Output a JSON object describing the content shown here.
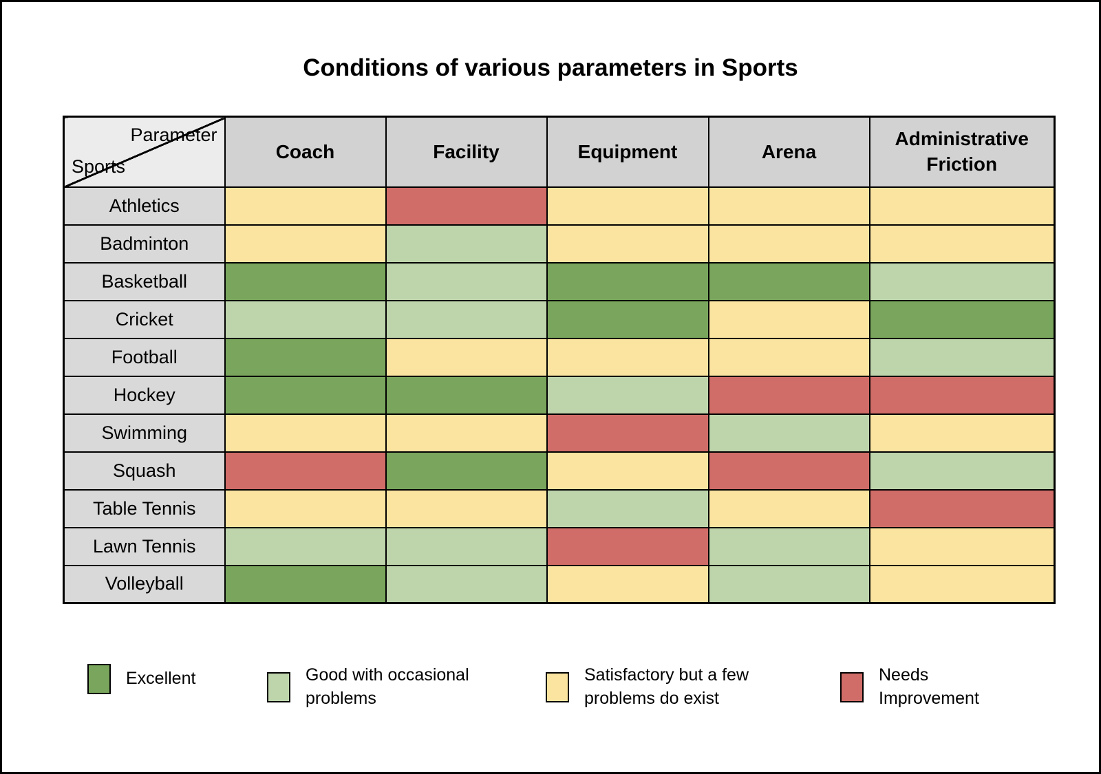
{
  "title": "Conditions of various parameters in Sports",
  "corner": {
    "top_right": "Parameter",
    "bottom_left": "Sports"
  },
  "chart_data": {
    "type": "heatmap",
    "title": "Conditions of various parameters in Sports",
    "columns": [
      "Coach",
      "Facility",
      "Equipment",
      "Arena",
      "Administrative Friction"
    ],
    "rows": [
      "Athletics",
      "Badminton",
      "Basketball",
      "Cricket",
      "Football",
      "Hockey",
      "Swimming",
      "Squash",
      "Table Tennis",
      "Lawn Tennis",
      "Volleyball"
    ],
    "values": [
      [
        "satisfactory",
        "needs_improvement",
        "satisfactory",
        "satisfactory",
        "satisfactory"
      ],
      [
        "satisfactory",
        "good",
        "satisfactory",
        "satisfactory",
        "satisfactory"
      ],
      [
        "excellent",
        "good",
        "excellent",
        "excellent",
        "good"
      ],
      [
        "good",
        "good",
        "excellent",
        "satisfactory",
        "excellent"
      ],
      [
        "excellent",
        "satisfactory",
        "satisfactory",
        "satisfactory",
        "good"
      ],
      [
        "excellent",
        "excellent",
        "good",
        "needs_improvement",
        "needs_improvement"
      ],
      [
        "satisfactory",
        "satisfactory",
        "needs_improvement",
        "good",
        "satisfactory"
      ],
      [
        "needs_improvement",
        "excellent",
        "satisfactory",
        "needs_improvement",
        "good"
      ],
      [
        "satisfactory",
        "satisfactory",
        "good",
        "satisfactory",
        "needs_improvement"
      ],
      [
        "good",
        "good",
        "needs_improvement",
        "good",
        "satisfactory"
      ],
      [
        "excellent",
        "good",
        "satisfactory",
        "good",
        "satisfactory"
      ]
    ],
    "legend": [
      {
        "key": "excellent",
        "label": "Excellent",
        "color": "#79A65C"
      },
      {
        "key": "good",
        "label": "Good with occasional problems",
        "color": "#BED5AC"
      },
      {
        "key": "satisfactory",
        "label": "Satisfactory but a few problems do exist",
        "color": "#FAE4A0"
      },
      {
        "key": "needs_improvement",
        "label": "Needs Improvement",
        "color": "#D16D68"
      }
    ],
    "legend_position": "bottom"
  },
  "colors": {
    "header_bg": "#D2D2D2",
    "corner_bg": "#ECECEC",
    "row_label_bg": "#D9D9D9",
    "border": "#000000",
    "page_bg": "#FFFFFF"
  }
}
